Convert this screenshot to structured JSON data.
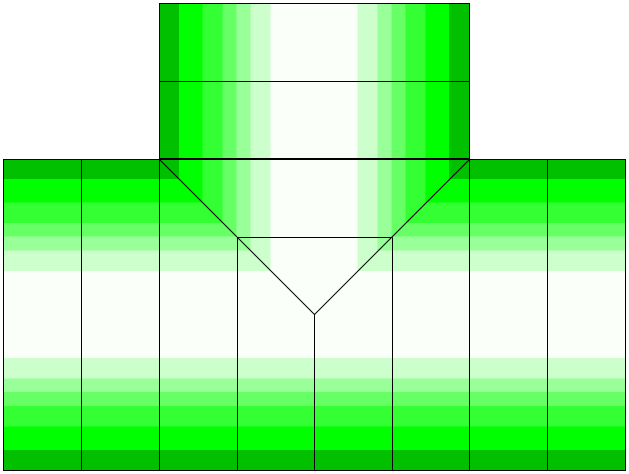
{
  "figure": {
    "description_free": true,
    "colors": {
      "background": "#ffffff",
      "outline": "#000000",
      "band_dark": "#00c000",
      "band_bright": "#00ff00",
      "band_mid": "#33ff33",
      "band_light": "#66ff66",
      "band_pale": "#99ff99",
      "band_faint": "#ccffcc",
      "center": "#fafffa"
    }
  }
}
